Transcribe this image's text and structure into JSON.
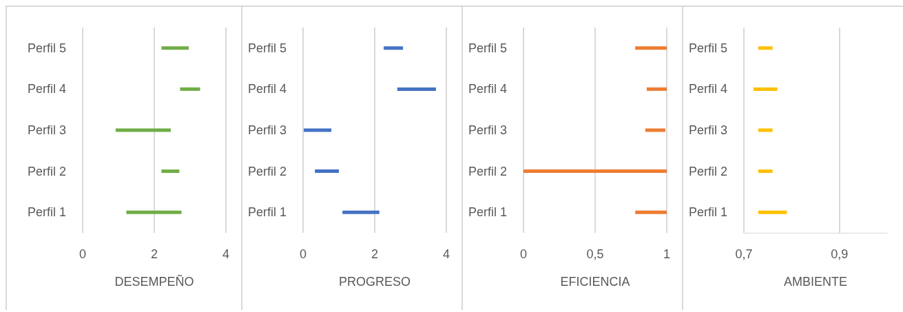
{
  "chart_data": [
    {
      "type": "bar",
      "orientation": "horizontal",
      "xlabel": "DESEMPEÑO",
      "categories": [
        "Perfil 5",
        "Perfil 4",
        "Perfil 3",
        "Perfil 2",
        "Perfil 1"
      ],
      "series": [
        {
          "color": "#70ad47",
          "base": [
            2.2,
            2.72,
            0.92,
            2.2,
            1.22
          ],
          "values": [
            0.76,
            0.56,
            1.54,
            0.5,
            1.54
          ]
        }
      ],
      "xlim": [
        0,
        4
      ],
      "xticks": [
        0,
        2,
        4
      ],
      "grid": "x"
    },
    {
      "type": "bar",
      "orientation": "horizontal",
      "xlabel": "PROGRESO",
      "categories": [
        "Perfil 5",
        "Perfil 4",
        "Perfil 3",
        "Perfil 2",
        "Perfil 1"
      ],
      "series": [
        {
          "color": "#4472c4",
          "base": [
            2.25,
            2.63,
            0.02,
            0.33,
            1.1
          ],
          "values": [
            0.54,
            1.08,
            0.77,
            0.67,
            1.03
          ]
        }
      ],
      "xlim": [
        0,
        4
      ],
      "xticks": [
        0,
        2,
        4
      ],
      "grid": "x"
    },
    {
      "type": "bar",
      "orientation": "horizontal",
      "xlabel": "EFICIENCIA",
      "categories": [
        "Perfil 5",
        "Perfil 4",
        "Perfil 3",
        "Perfil 2",
        "Perfil 1"
      ],
      "series": [
        {
          "color": "#ed7d31",
          "base": [
            0.78,
            0.86,
            0.85,
            0,
            0.78
          ],
          "values": [
            0.22,
            0.14,
            0.14,
            1,
            0.22
          ]
        }
      ],
      "xlim": [
        0,
        1
      ],
      "xticks": [
        0,
        {
          "value": 0.5,
          "label": "0,5"
        },
        1
      ],
      "grid": "x"
    },
    {
      "type": "bar",
      "orientation": "horizontal",
      "xlabel": "AMBIENTE",
      "categories": [
        "Perfil 5",
        "Perfil 4",
        "Perfil 3",
        "Perfil 2",
        "Perfil 1"
      ],
      "series": [
        {
          "color": "#ffc000",
          "base": [
            0.73,
            0.72,
            0.73,
            0.73,
            0.73
          ],
          "values": [
            0.03,
            0.05,
            0.03,
            0.03,
            0.06
          ]
        }
      ],
      "xlim": [
        0.7,
        1.0
      ],
      "xticks": [
        {
          "value": 0.7,
          "label": "0,7"
        },
        {
          "value": 0.9,
          "label": "0,9"
        }
      ],
      "grid": "x"
    }
  ]
}
